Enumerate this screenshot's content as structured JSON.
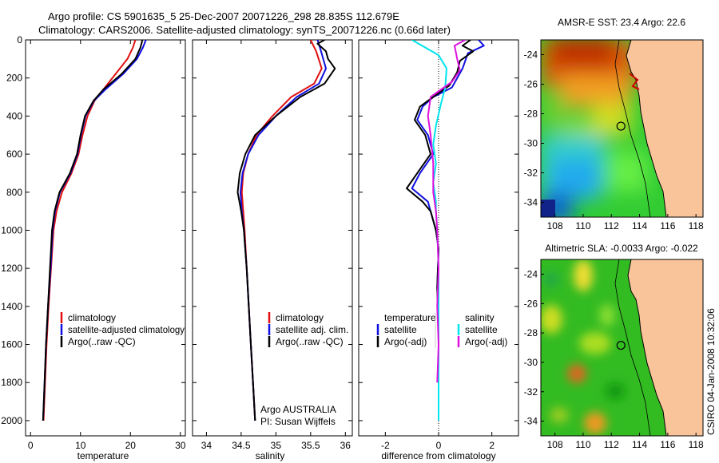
{
  "figure": {
    "title_line1": "Argo profile: CS 5901635_5 25-Dec-2007 20071226_298 28.835S 112.679E",
    "title_line2": "Climatology: CARS2006. Satellite-adjusted climatology: synTS_20071226.nc (0.66d later)",
    "side_stamp": "CSIRO 04-Jan-2008 10:32:06",
    "colors": {
      "climatology": "#e01010",
      "satellite": "#1010e0",
      "argo": "#000000",
      "sal_satellite": "#00e5ee",
      "sal_argo": "#e010e0",
      "land": "#f9c49a"
    }
  },
  "chart_data": [
    {
      "id": "temperature",
      "type": "line",
      "xlabel": "temperature",
      "xlim": [
        -1,
        31
      ],
      "ylim": [
        2080,
        0
      ],
      "xticks": [
        0,
        10,
        20,
        30
      ],
      "yticks": [
        0,
        200,
        400,
        600,
        800,
        1000,
        1200,
        1400,
        1600,
        1800,
        2000
      ],
      "legend": [
        "climatology",
        "satellite-adjusted climatology",
        "Argo(..raw -QC)"
      ],
      "series": [
        {
          "name": "climatology",
          "color": "#e01010",
          "points": [
            [
              21.0,
              0
            ],
            [
              20.5,
              40
            ],
            [
              19.4,
              100
            ],
            [
              17.0,
              180
            ],
            [
              14.3,
              270
            ],
            [
              12.8,
              320
            ],
            [
              11.4,
              400
            ],
            [
              10.4,
              500
            ],
            [
              9.6,
              600
            ],
            [
              8.2,
              700
            ],
            [
              6.3,
              800
            ],
            [
              5.2,
              900
            ],
            [
              4.6,
              1000
            ],
            [
              4.1,
              1200
            ],
            [
              3.6,
              1400
            ],
            [
              3.2,
              1600
            ],
            [
              2.9,
              1800
            ],
            [
              2.6,
              2000
            ]
          ]
        },
        {
          "name": "satellite",
          "color": "#1010e0",
          "points": [
            [
              23.1,
              0
            ],
            [
              22.5,
              40
            ],
            [
              21.3,
              100
            ],
            [
              18.5,
              180
            ],
            [
              15.0,
              260
            ],
            [
              12.7,
              320
            ],
            [
              11.0,
              400
            ],
            [
              10.1,
              500
            ],
            [
              9.4,
              600
            ],
            [
              8.0,
              700
            ],
            [
              5.9,
              800
            ],
            [
              4.9,
              900
            ],
            [
              4.4,
              1000
            ],
            [
              4.0,
              1200
            ],
            [
              3.5,
              1400
            ],
            [
              3.1,
              1600
            ],
            [
              2.8,
              1800
            ],
            [
              2.5,
              2000
            ]
          ]
        },
        {
          "name": "argo",
          "color": "#000000",
          "points": [
            [
              22.4,
              0
            ],
            [
              22.0,
              40
            ],
            [
              21.0,
              100
            ],
            [
              18.2,
              180
            ],
            [
              14.6,
              260
            ],
            [
              12.6,
              320
            ],
            [
              10.9,
              400
            ],
            [
              10.0,
              500
            ],
            [
              9.3,
              600
            ],
            [
              7.9,
              700
            ],
            [
              5.8,
              800
            ],
            [
              4.8,
              900
            ],
            [
              4.3,
              1000
            ],
            [
              3.9,
              1200
            ],
            [
              3.5,
              1400
            ],
            [
              3.1,
              1600
            ],
            [
              2.8,
              1800
            ],
            [
              2.5,
              2000
            ]
          ]
        }
      ]
    },
    {
      "id": "salinity",
      "type": "line",
      "xlabel": "salinity",
      "xlim": [
        33.8,
        36.1
      ],
      "ylim": [
        2080,
        0
      ],
      "xticks": [
        34,
        34.5,
        35,
        35.5,
        36
      ],
      "legend": [
        "climatology",
        "satellite adj. clim.",
        "Argo(..raw -QC)"
      ],
      "annotations": [
        "Argo AUSTRALIA",
        "PI: Susan Wijffels"
      ],
      "series": [
        {
          "name": "climatology",
          "color": "#e01010",
          "points": [
            [
              35.5,
              0
            ],
            [
              35.58,
              60
            ],
            [
              35.66,
              150
            ],
            [
              35.55,
              230
            ],
            [
              35.22,
              300
            ],
            [
              34.95,
              400
            ],
            [
              34.72,
              500
            ],
            [
              34.6,
              600
            ],
            [
              34.53,
              700
            ],
            [
              34.51,
              800
            ],
            [
              34.53,
              900
            ],
            [
              34.55,
              1000
            ],
            [
              34.58,
              1200
            ],
            [
              34.61,
              1400
            ],
            [
              34.64,
              1600
            ],
            [
              34.67,
              1800
            ],
            [
              34.7,
              2000
            ]
          ]
        },
        {
          "name": "satellite",
          "color": "#1010e0",
          "points": [
            [
              35.6,
              0
            ],
            [
              35.65,
              60
            ],
            [
              35.72,
              150
            ],
            [
              35.62,
              230
            ],
            [
              35.3,
              300
            ],
            [
              35.0,
              400
            ],
            [
              34.75,
              500
            ],
            [
              34.6,
              600
            ],
            [
              34.52,
              700
            ],
            [
              34.49,
              800
            ],
            [
              34.51,
              900
            ],
            [
              34.54,
              1000
            ],
            [
              34.58,
              1200
            ],
            [
              34.61,
              1400
            ],
            [
              34.64,
              1600
            ],
            [
              34.67,
              1800
            ],
            [
              34.7,
              2000
            ]
          ]
        },
        {
          "name": "argo",
          "color": "#000000",
          "points": [
            [
              35.7,
              0
            ],
            [
              35.6,
              20
            ],
            [
              35.72,
              60
            ],
            [
              35.75,
              100
            ],
            [
              35.85,
              150
            ],
            [
              35.7,
              230
            ],
            [
              35.35,
              300
            ],
            [
              35.0,
              400
            ],
            [
              34.7,
              500
            ],
            [
              34.56,
              600
            ],
            [
              34.48,
              700
            ],
            [
              34.45,
              800
            ],
            [
              34.5,
              900
            ],
            [
              34.54,
              1000
            ],
            [
              34.58,
              1200
            ],
            [
              34.61,
              1400
            ],
            [
              34.64,
              1600
            ],
            [
              34.67,
              1800
            ],
            [
              34.7,
              2000
            ]
          ]
        }
      ]
    },
    {
      "id": "difference",
      "type": "line",
      "xlabel": "difference from climatology",
      "xlim": [
        -3,
        3
      ],
      "ylim": [
        2080,
        0
      ],
      "xticks": [
        -2,
        0,
        2
      ],
      "legend_left_title": "temperature",
      "legend_right_title": "salinity",
      "legend_left": [
        "satellite",
        "Argo(-adj)"
      ],
      "legend_right": [
        "satellite",
        "Argo(-adj)"
      ],
      "series": [
        {
          "name": "temperature satellite",
          "color": "#1010e0",
          "points": [
            [
              1.5,
              0
            ],
            [
              1.7,
              30
            ],
            [
              1.1,
              70
            ],
            [
              0.9,
              150
            ],
            [
              0.5,
              250
            ],
            [
              -0.2,
              300
            ],
            [
              -0.6,
              350
            ],
            [
              -0.8,
              420
            ],
            [
              -0.4,
              500
            ],
            [
              -0.2,
              600
            ],
            [
              -0.7,
              700
            ],
            [
              -1.0,
              780
            ],
            [
              -0.4,
              850
            ],
            [
              -0.3,
              900
            ],
            [
              -0.1,
              1000
            ],
            [
              0.0,
              1100
            ],
            [
              -0.05,
              1300
            ],
            [
              0.0,
              1500
            ],
            [
              0.0,
              1700
            ],
            [
              0.0,
              1900
            ]
          ]
        },
        {
          "name": "temperature argo",
          "color": "#000000",
          "points": [
            [
              1.2,
              0
            ],
            [
              0.9,
              30
            ],
            [
              1.3,
              60
            ],
            [
              0.8,
              110
            ],
            [
              0.7,
              170
            ],
            [
              0.4,
              240
            ],
            [
              -0.2,
              300
            ],
            [
              -0.7,
              350
            ],
            [
              -0.9,
              420
            ],
            [
              -0.5,
              500
            ],
            [
              -0.3,
              600
            ],
            [
              -0.8,
              700
            ],
            [
              -1.2,
              780
            ],
            [
              -0.6,
              850
            ],
            [
              -0.3,
              900
            ],
            [
              -0.1,
              1000
            ],
            [
              0.0,
              1100
            ],
            [
              -0.05,
              1300
            ],
            [
              0.0,
              1500
            ],
            [
              0.0,
              1700
            ],
            [
              0.0,
              1900
            ]
          ]
        },
        {
          "name": "salinity satellite",
          "color": "#00e5ee",
          "points": [
            [
              -1.0,
              0
            ],
            [
              -0.5,
              40
            ],
            [
              0.0,
              80
            ],
            [
              0.3,
              150
            ],
            [
              0.25,
              250
            ],
            [
              0.1,
              330
            ],
            [
              -0.1,
              450
            ],
            [
              -0.2,
              550
            ],
            [
              -0.1,
              650
            ],
            [
              -0.2,
              750
            ],
            [
              -0.1,
              850
            ],
            [
              -0.1,
              900
            ],
            [
              -0.05,
              1000
            ],
            [
              0.0,
              1200
            ],
            [
              0.0,
              1400
            ],
            [
              0.0,
              1600
            ],
            [
              0.0,
              1800
            ],
            [
              0.0,
              2000
            ]
          ]
        },
        {
          "name": "salinity argo",
          "color": "#e010e0",
          "points": [
            [
              1.0,
              0
            ],
            [
              0.6,
              30
            ],
            [
              0.7,
              100
            ],
            [
              0.8,
              160
            ],
            [
              0.5,
              220
            ],
            [
              -0.3,
              300
            ],
            [
              -0.4,
              400
            ],
            [
              -0.3,
              500
            ],
            [
              -0.2,
              650
            ],
            [
              -0.2,
              800
            ],
            [
              -0.1,
              900
            ],
            [
              -0.05,
              1000
            ],
            [
              0.0,
              1200
            ],
            [
              -0.05,
              1400
            ],
            [
              0.0,
              1600
            ],
            [
              -0.05,
              1800
            ]
          ]
        }
      ]
    },
    {
      "id": "sst_map",
      "type": "heatmap",
      "title": "AMSR-E SST: 23.4 Argo: 22.6",
      "xlim": [
        107,
        118.5
      ],
      "ylim": [
        -35,
        -23
      ],
      "xticks": [
        108,
        110,
        112,
        114,
        116,
        118
      ],
      "yticks": [
        -24,
        -26,
        -28,
        -30,
        -32,
        -34
      ],
      "marker": [
        112.68,
        -28.84
      ]
    },
    {
      "id": "sla_map",
      "type": "heatmap",
      "title": "Altimetric SLA: -0.0033 Argo: -0.022",
      "xlim": [
        107,
        118.5
      ],
      "ylim": [
        -35,
        -23
      ],
      "xticks": [
        108,
        110,
        112,
        114,
        116,
        118
      ],
      "yticks": [
        -24,
        -26,
        -28,
        -30,
        -32,
        -34
      ],
      "marker": [
        112.68,
        -28.84
      ]
    }
  ]
}
